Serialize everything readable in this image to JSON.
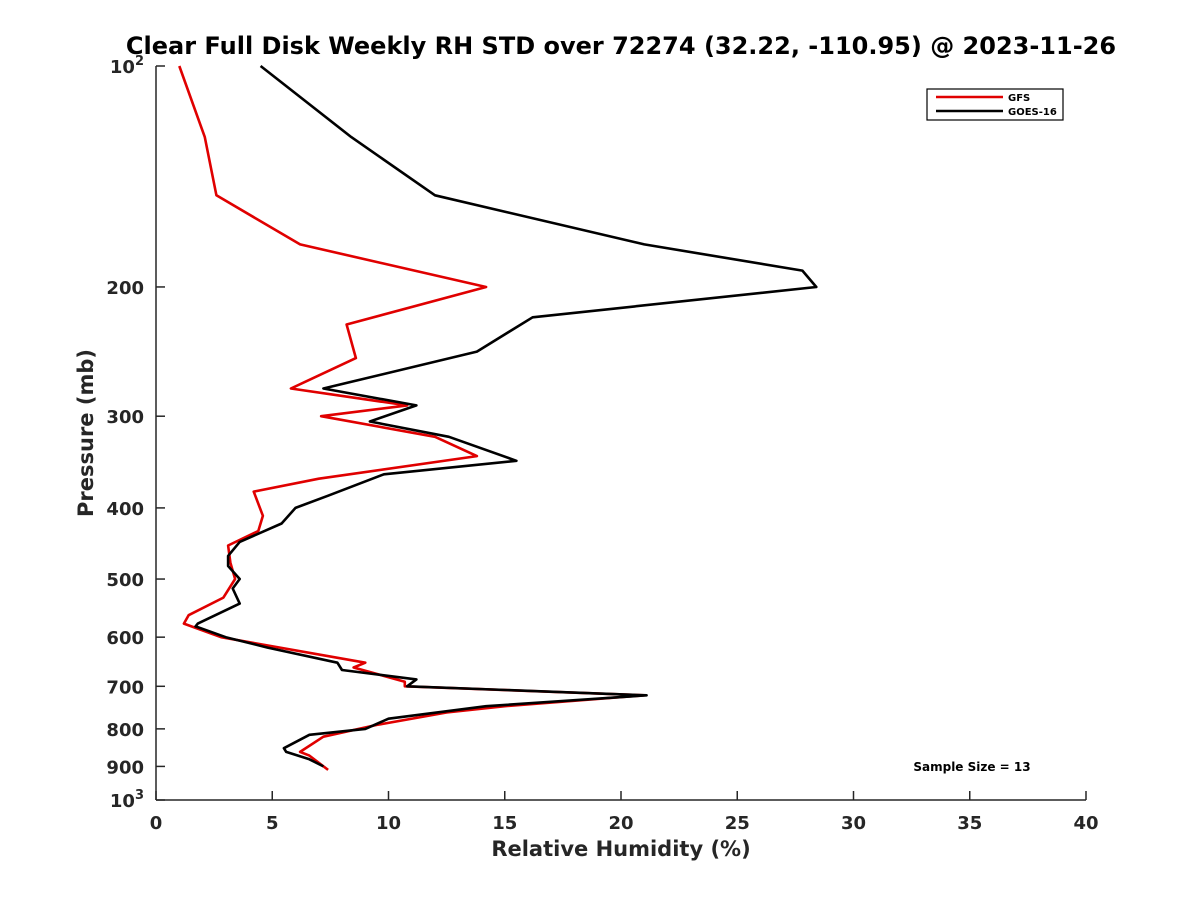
{
  "chart_data": {
    "type": "line",
    "title": "Clear Full Disk Weekly RH STD over 72274 (32.22, -110.95) @ 2023-11-26",
    "xlabel": "Relative Humidity (%)",
    "ylabel": "Pressure (mb)",
    "xlim": [
      0,
      40
    ],
    "ylim": [
      100,
      1000
    ],
    "y_scale": "log",
    "y_reversed": true,
    "x_ticks": [
      0,
      5,
      10,
      15,
      20,
      25,
      30,
      35,
      40
    ],
    "y_ticks": [
      {
        "value": 100,
        "base": "10",
        "exp": "2"
      },
      {
        "value": 200,
        "label": "200"
      },
      {
        "value": 300,
        "label": "300"
      },
      {
        "value": 400,
        "label": "400"
      },
      {
        "value": 500,
        "label": "500"
      },
      {
        "value": 600,
        "label": "600"
      },
      {
        "value": 700,
        "label": "700"
      },
      {
        "value": 800,
        "label": "800"
      },
      {
        "value": 900,
        "label": "900"
      },
      {
        "value": 1000,
        "base": "10",
        "exp": "3"
      }
    ],
    "grid": false,
    "legend_position": "top-right",
    "annotation": "Sample Size = 13",
    "series": [
      {
        "name": "GFS",
        "color": "#e00000",
        "points": [
          [
            1.0,
            100
          ],
          [
            2.1,
            125
          ],
          [
            2.6,
            150
          ],
          [
            6.2,
            175
          ],
          [
            14.2,
            200
          ],
          [
            8.2,
            225
          ],
          [
            8.6,
            250
          ],
          [
            5.8,
            275
          ],
          [
            10.8,
            290
          ],
          [
            7.1,
            300
          ],
          [
            12.0,
            320
          ],
          [
            13.8,
            340
          ],
          [
            7.0,
            365
          ],
          [
            4.2,
            380
          ],
          [
            4.6,
            410
          ],
          [
            4.4,
            430
          ],
          [
            3.1,
            450
          ],
          [
            3.2,
            475
          ],
          [
            3.4,
            500
          ],
          [
            2.9,
            530
          ],
          [
            1.4,
            560
          ],
          [
            1.2,
            575
          ],
          [
            2.8,
            600
          ],
          [
            9.0,
            650
          ],
          [
            8.5,
            660
          ],
          [
            10.7,
            690
          ],
          [
            10.7,
            700
          ],
          [
            21.0,
            720
          ],
          [
            15.0,
            745
          ],
          [
            12.5,
            760
          ],
          [
            9.5,
            790
          ],
          [
            7.2,
            820
          ],
          [
            6.2,
            860
          ],
          [
            6.6,
            870
          ],
          [
            7.4,
            910
          ]
        ]
      },
      {
        "name": "GOES-16",
        "color": "#000000",
        "points": [
          [
            4.5,
            100
          ],
          [
            8.4,
            125
          ],
          [
            12.0,
            150
          ],
          [
            21.0,
            175
          ],
          [
            27.8,
            190
          ],
          [
            28.4,
            200
          ],
          [
            16.2,
            220
          ],
          [
            13.8,
            245
          ],
          [
            7.2,
            275
          ],
          [
            11.2,
            290
          ],
          [
            9.2,
            305
          ],
          [
            12.6,
            320
          ],
          [
            15.5,
            345
          ],
          [
            9.8,
            360
          ],
          [
            7.4,
            385
          ],
          [
            6.0,
            400
          ],
          [
            5.4,
            420
          ],
          [
            3.6,
            445
          ],
          [
            3.1,
            465
          ],
          [
            3.1,
            480
          ],
          [
            3.6,
            500
          ],
          [
            3.3,
            515
          ],
          [
            3.6,
            540
          ],
          [
            1.8,
            575
          ],
          [
            1.7,
            580
          ],
          [
            3.0,
            600
          ],
          [
            4.8,
            620
          ],
          [
            7.8,
            650
          ],
          [
            8.0,
            665
          ],
          [
            11.2,
            685
          ],
          [
            10.8,
            700
          ],
          [
            21.1,
            720
          ],
          [
            14.2,
            745
          ],
          [
            10.0,
            775
          ],
          [
            9.0,
            800
          ],
          [
            6.6,
            815
          ],
          [
            5.5,
            850
          ],
          [
            5.6,
            860
          ],
          [
            6.6,
            880
          ],
          [
            7.2,
            900
          ]
        ]
      }
    ]
  }
}
